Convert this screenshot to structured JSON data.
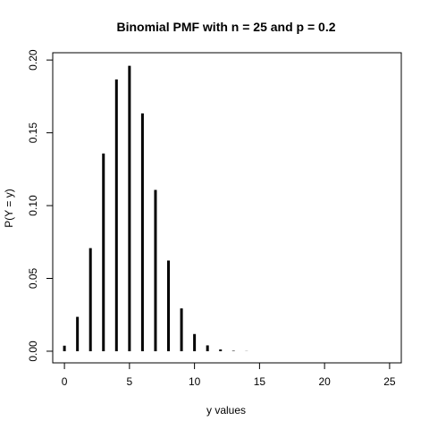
{
  "chart_data": {
    "type": "bar",
    "title": "Binomial PMF with n = 25 and p = 0.2",
    "xlabel": "y values",
    "ylabel": "P(Y = y)",
    "xlim": [
      -0.9,
      25.9
    ],
    "ylim": [
      -0.008,
      0.205
    ],
    "xticks": [
      "0",
      "5",
      "10",
      "15",
      "20",
      "25"
    ],
    "yticks": [
      "0.00",
      "0.05",
      "0.10",
      "0.15",
      "0.20"
    ],
    "x": [
      0,
      1,
      2,
      3,
      4,
      5,
      6,
      7,
      8,
      9,
      10,
      11,
      12,
      13,
      14,
      15,
      16,
      17,
      18,
      19,
      20,
      21,
      22,
      23,
      24,
      25
    ],
    "values": [
      0.0038,
      0.0236,
      0.0708,
      0.1358,
      0.1867,
      0.196,
      0.1633,
      0.1108,
      0.0623,
      0.0294,
      0.0118,
      0.004,
      0.0012,
      0.0003,
      0.0001,
      0.0,
      0.0,
      0.0,
      0.0,
      0.0,
      0.0,
      0.0,
      0.0,
      0.0,
      0.0,
      0.0
    ],
    "color": "#000000"
  }
}
